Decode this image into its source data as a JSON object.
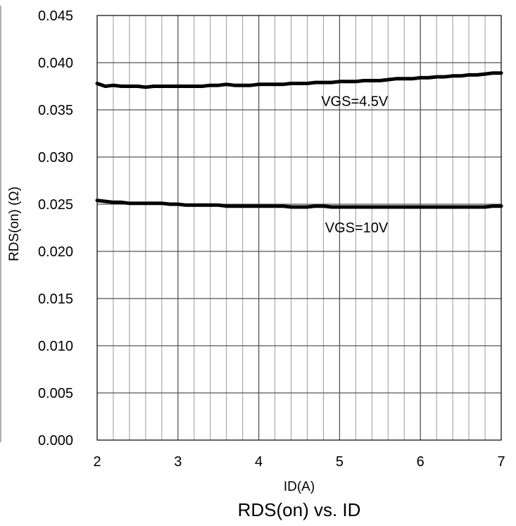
{
  "chart_data": {
    "type": "line",
    "title": "RDS(on) vs. ID",
    "xlabel": "ID(A)",
    "ylabel": "RDS(on) (Ω)",
    "xlim": [
      2,
      7
    ],
    "ylim": [
      0.0,
      0.045
    ],
    "x_ticks": [
      "2",
      "3",
      "4",
      "5",
      "6",
      "7"
    ],
    "y_ticks": [
      "0.000",
      "0.005",
      "0.010",
      "0.015",
      "0.020",
      "0.025",
      "0.030",
      "0.035",
      "0.040",
      "0.045"
    ],
    "grid": true,
    "series": [
      {
        "name": "VGS=4.5V",
        "x": [
          2.0,
          2.1,
          2.2,
          2.3,
          2.4,
          2.5,
          2.6,
          2.7,
          2.8,
          2.9,
          3.0,
          3.1,
          3.2,
          3.3,
          3.4,
          3.5,
          3.6,
          3.7,
          3.8,
          3.9,
          4.0,
          4.1,
          4.2,
          4.3,
          4.4,
          4.5,
          4.6,
          4.7,
          4.8,
          4.9,
          5.0,
          5.1,
          5.2,
          5.3,
          5.4,
          5.5,
          5.6,
          5.7,
          5.8,
          5.9,
          6.0,
          6.1,
          6.2,
          6.3,
          6.4,
          6.5,
          6.6,
          6.7,
          6.8,
          6.9,
          7.0
        ],
        "y": [
          0.0378,
          0.0375,
          0.0376,
          0.0375,
          0.0375,
          0.0375,
          0.0374,
          0.0375,
          0.0375,
          0.0375,
          0.0375,
          0.0375,
          0.0375,
          0.0375,
          0.0376,
          0.0376,
          0.0377,
          0.0376,
          0.0376,
          0.0376,
          0.0377,
          0.0377,
          0.0377,
          0.0377,
          0.0378,
          0.0378,
          0.0378,
          0.0379,
          0.0379,
          0.0379,
          0.038,
          0.038,
          0.038,
          0.0381,
          0.0381,
          0.0381,
          0.0382,
          0.0383,
          0.0383,
          0.0383,
          0.0384,
          0.0384,
          0.0385,
          0.0385,
          0.0386,
          0.0386,
          0.0387,
          0.0387,
          0.0388,
          0.0389,
          0.0389
        ]
      },
      {
        "name": "VGS=10V",
        "x": [
          2.0,
          2.1,
          2.2,
          2.3,
          2.4,
          2.5,
          2.6,
          2.7,
          2.8,
          2.9,
          3.0,
          3.1,
          3.2,
          3.3,
          3.4,
          3.5,
          3.6,
          3.7,
          3.8,
          3.9,
          4.0,
          4.1,
          4.2,
          4.3,
          4.4,
          4.5,
          4.6,
          4.7,
          4.8,
          4.9,
          5.0,
          5.1,
          5.2,
          5.3,
          5.4,
          5.5,
          5.6,
          5.7,
          5.8,
          5.9,
          6.0,
          6.1,
          6.2,
          6.3,
          6.4,
          6.5,
          6.6,
          6.7,
          6.8,
          6.9,
          7.0
        ],
        "y": [
          0.0254,
          0.0253,
          0.0252,
          0.0252,
          0.0251,
          0.0251,
          0.0251,
          0.0251,
          0.0251,
          0.025,
          0.025,
          0.0249,
          0.0249,
          0.0249,
          0.0249,
          0.0249,
          0.0248,
          0.0248,
          0.0248,
          0.0248,
          0.0248,
          0.0248,
          0.0248,
          0.0248,
          0.0247,
          0.0247,
          0.0247,
          0.0248,
          0.0248,
          0.0247,
          0.0247,
          0.0247,
          0.0247,
          0.0247,
          0.0247,
          0.0247,
          0.0247,
          0.0247,
          0.0247,
          0.0247,
          0.0247,
          0.0247,
          0.0247,
          0.0247,
          0.0247,
          0.0247,
          0.0247,
          0.0247,
          0.0247,
          0.0248,
          0.0248
        ]
      }
    ],
    "annotations": [
      {
        "text": "VGS=4.5V",
        "series": 0,
        "x": 5.6,
        "y": 0.0354
      },
      {
        "text": "VGS=10V",
        "series": 1,
        "x": 5.6,
        "y": 0.022
      }
    ]
  }
}
